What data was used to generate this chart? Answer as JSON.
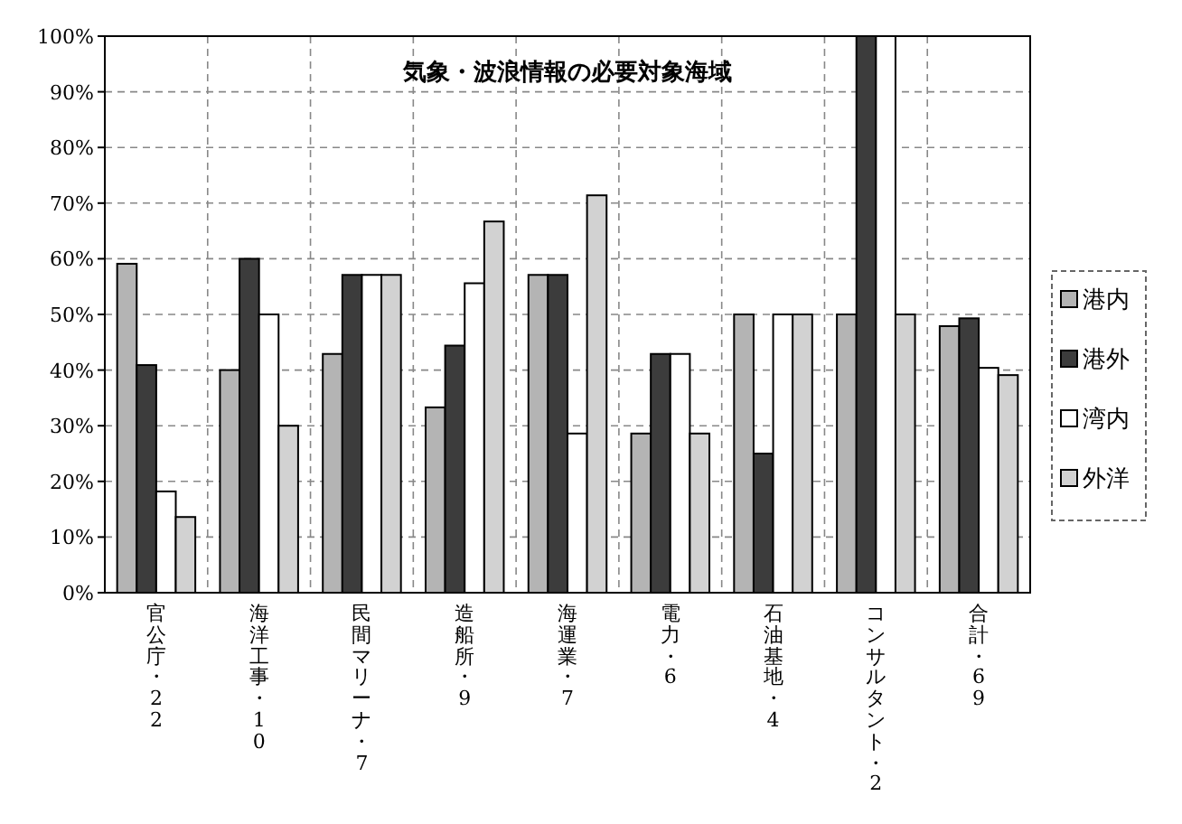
{
  "chart_data": {
    "type": "bar",
    "title": "気象・波浪情報の必要対象海域",
    "categories": [
      "官公庁・22",
      "海洋工事・10",
      "民間マリーナ・7",
      "造船所・9",
      "海運業・7",
      "電力・6",
      "石油基地・4",
      "コンサルタント・2",
      "合計・69"
    ],
    "series": [
      {
        "name": "港内",
        "color": "#b4b4b4",
        "values": [
          59.1,
          40,
          42.9,
          33.3,
          57.1,
          28.6,
          50,
          50,
          47.9
        ]
      },
      {
        "name": "港外",
        "color": "#3c3c3c",
        "values": [
          40.9,
          60,
          57.1,
          44.4,
          57.1,
          42.9,
          25,
          100,
          49.3
        ]
      },
      {
        "name": "湾内",
        "color": "#ffffff",
        "values": [
          18.2,
          50,
          57.1,
          55.6,
          28.6,
          42.9,
          50,
          100,
          40.4
        ]
      },
      {
        "name": "外洋",
        "color": "#d2d2d2",
        "values": [
          13.6,
          30,
          57.1,
          66.7,
          71.4,
          28.6,
          50,
          50,
          39.1
        ]
      }
    ],
    "ylim": [
      0,
      100
    ],
    "yticks": [
      {
        "value": 0,
        "label": "0%"
      },
      {
        "value": 10,
        "label": "10%"
      },
      {
        "value": 20,
        "label": "20%"
      },
      {
        "value": 30,
        "label": "30%"
      },
      {
        "value": 40,
        "label": "40%"
      },
      {
        "value": 50,
        "label": "50%"
      },
      {
        "value": 60,
        "label": "60%"
      },
      {
        "value": 70,
        "label": "70%"
      },
      {
        "value": 80,
        "label": "80%"
      },
      {
        "value": 90,
        "label": "90%"
      },
      {
        "value": 100,
        "label": "100%"
      }
    ],
    "grid": true,
    "legend": "right"
  }
}
